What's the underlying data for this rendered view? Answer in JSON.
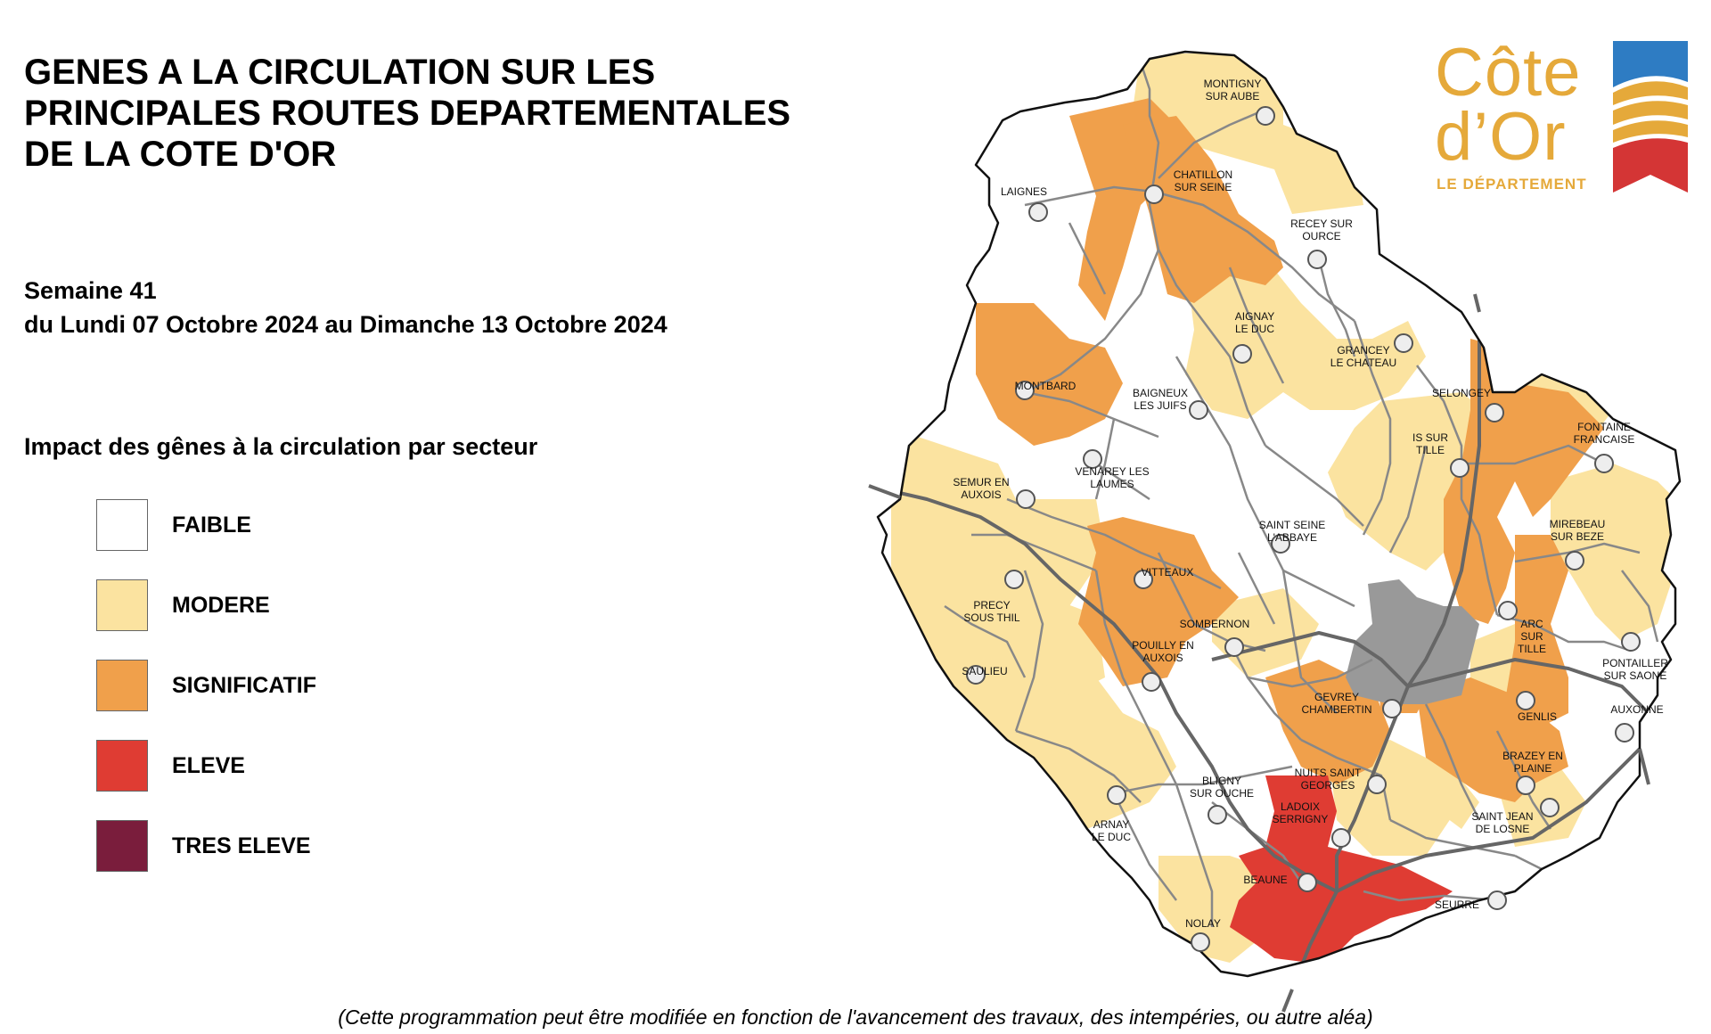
{
  "title_lines": [
    "GENES A LA CIRCULATION SUR LES",
    "PRINCIPALES ROUTES DEPARTEMENTALES",
    "DE LA COTE D'OR"
  ],
  "week": {
    "label": "Semaine 41",
    "range": "du Lundi 07 Octobre 2024 au Dimanche 13 Octobre 2024"
  },
  "legend": {
    "title": "Impact des gênes à la circulation par secteur",
    "items": [
      {
        "label": "FAIBLE",
        "color": "#ffffff"
      },
      {
        "label": "MODERE",
        "color": "#fbe3a0"
      },
      {
        "label": "SIGNIFICATIF",
        "color": "#f0a04b"
      },
      {
        "label": "ELEVE",
        "color": "#df3c33"
      },
      {
        "label": "TRES ELEVE",
        "color": "#7a1d3c"
      }
    ]
  },
  "footer": "(Cette programmation peut être modifiée en fonction de l'avancement des travaux, des intempéries, ou autre aléa)",
  "logo": {
    "line1": "Côte",
    "line2": "d’Or",
    "subtitle": "LE DÉPARTEMENT",
    "gold": "#e5a93a",
    "blue": "#2e7cc3",
    "red": "#d43535"
  },
  "map": {
    "colors": {
      "faible": "#ffffff",
      "modere": "#fbe3a0",
      "significatif": "#f0a04b",
      "eleve": "#df3c33",
      "urban": "#999999",
      "road": "#888888",
      "highway": "#666666",
      "border": "#111111"
    },
    "towns": [
      {
        "name": [
          "MONTIGNY",
          "SUR AUBE"
        ]
      },
      {
        "name": [
          "CHATILLON",
          "SUR SEINE"
        ]
      },
      {
        "name": [
          "LAIGNES"
        ]
      },
      {
        "name": [
          "RECEY SUR",
          "OURCE"
        ]
      },
      {
        "name": [
          "AIGNAY",
          "LE DUC"
        ]
      },
      {
        "name": [
          "GRANCEY",
          "LE CHATEAU"
        ]
      },
      {
        "name": [
          "MONTBARD"
        ]
      },
      {
        "name": [
          "BAIGNEUX",
          "LES JUIFS"
        ]
      },
      {
        "name": [
          "SELONGEY"
        ]
      },
      {
        "name": [
          "IS SUR",
          "TILLE"
        ]
      },
      {
        "name": [
          "FONTAINE",
          "FRANCAISE"
        ]
      },
      {
        "name": [
          "VENAREY LES",
          "LAUMES"
        ]
      },
      {
        "name": [
          "SEMUR EN",
          "AUXOIS"
        ]
      },
      {
        "name": [
          "SAINT SEINE",
          "L'ABBAYE"
        ]
      },
      {
        "name": [
          "MIREBEAU",
          "SUR BEZE"
        ]
      },
      {
        "name": [
          "VITTEAUX"
        ]
      },
      {
        "name": [
          "PRECY",
          "SOUS THIL"
        ]
      },
      {
        "name": [
          "SOMBERNON"
        ]
      },
      {
        "name": [
          "ARC",
          "SUR",
          "TILLE"
        ]
      },
      {
        "name": [
          "POUILLY EN",
          "AUXOIS"
        ]
      },
      {
        "name": [
          "SAULIEU"
        ]
      },
      {
        "name": [
          "PONTAILLER",
          "SUR SAONE"
        ]
      },
      {
        "name": [
          "GEVREY",
          "CHAMBERTIN"
        ]
      },
      {
        "name": [
          "GENLIS"
        ]
      },
      {
        "name": [
          "AUXONNE"
        ]
      },
      {
        "name": [
          "NUITS SAINT",
          "GEORGES"
        ]
      },
      {
        "name": [
          "BRAZEY EN",
          "PLAINE"
        ]
      },
      {
        "name": [
          "BLIGNY",
          "SUR OUCHE"
        ]
      },
      {
        "name": [
          "LADOIX",
          "SERRIGNY"
        ]
      },
      {
        "name": [
          "SAINT JEAN",
          "DE LOSNE"
        ]
      },
      {
        "name": [
          "ARNAY",
          "LE DUC"
        ]
      },
      {
        "name": [
          "BEAUNE"
        ]
      },
      {
        "name": [
          "SEURRE"
        ]
      },
      {
        "name": [
          "NOLAY"
        ]
      }
    ]
  }
}
